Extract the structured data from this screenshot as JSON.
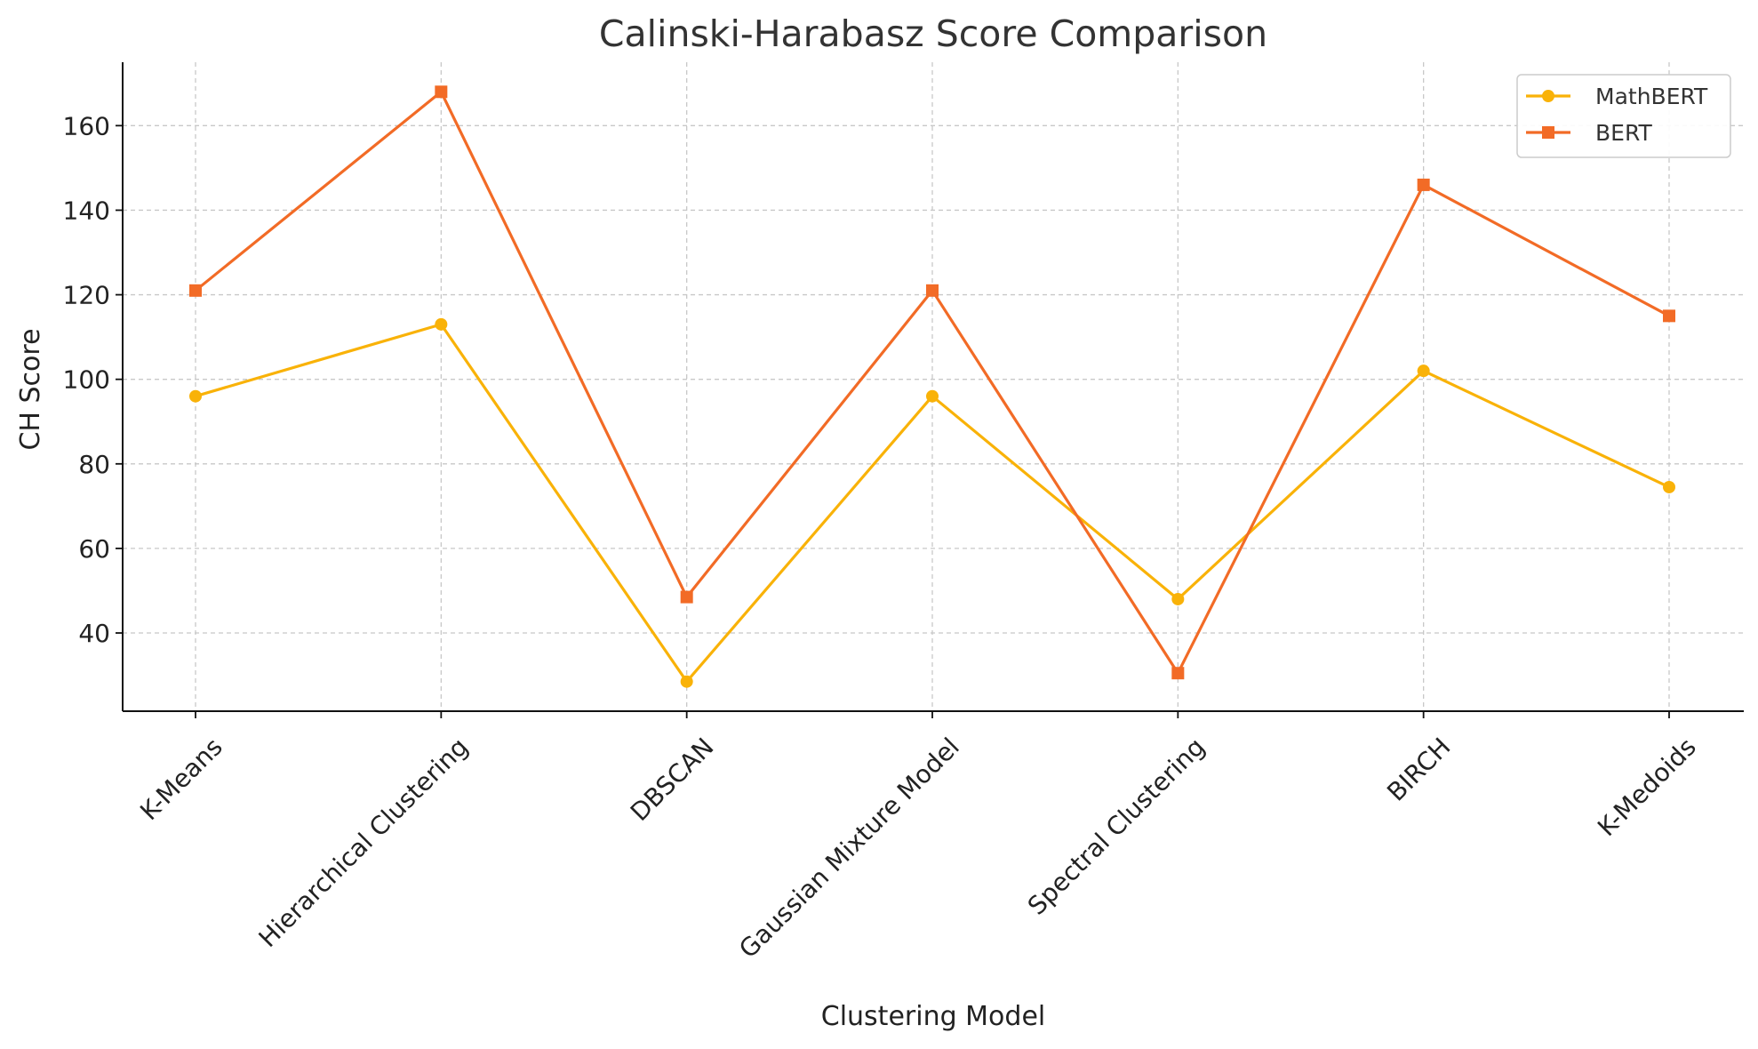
{
  "chart_data": {
    "type": "line",
    "title": "Calinski-Harabasz Score Comparison",
    "xlabel": "Clustering Model",
    "ylabel": "CH Score",
    "categories": [
      "K-Means",
      "Hierarchical Clustering",
      "DBSCAN",
      "Gaussian Mixture Model",
      "Spectral Clustering",
      "BIRCH",
      "K-Medoids"
    ],
    "yticks": [
      40,
      60,
      80,
      100,
      120,
      140,
      160
    ],
    "ylim": [
      21.5,
      175
    ],
    "grid": true,
    "legend_position": "top-right",
    "series": [
      {
        "name": "MathBERT",
        "values": [
          96,
          113,
          28.5,
          96,
          48,
          102,
          74.5
        ],
        "color": "#f9b208",
        "marker": "circle"
      },
      {
        "name": "BERT",
        "values": [
          121,
          168,
          48.5,
          121,
          30.5,
          146,
          115
        ],
        "color": "#f26b26",
        "marker": "square"
      }
    ]
  }
}
